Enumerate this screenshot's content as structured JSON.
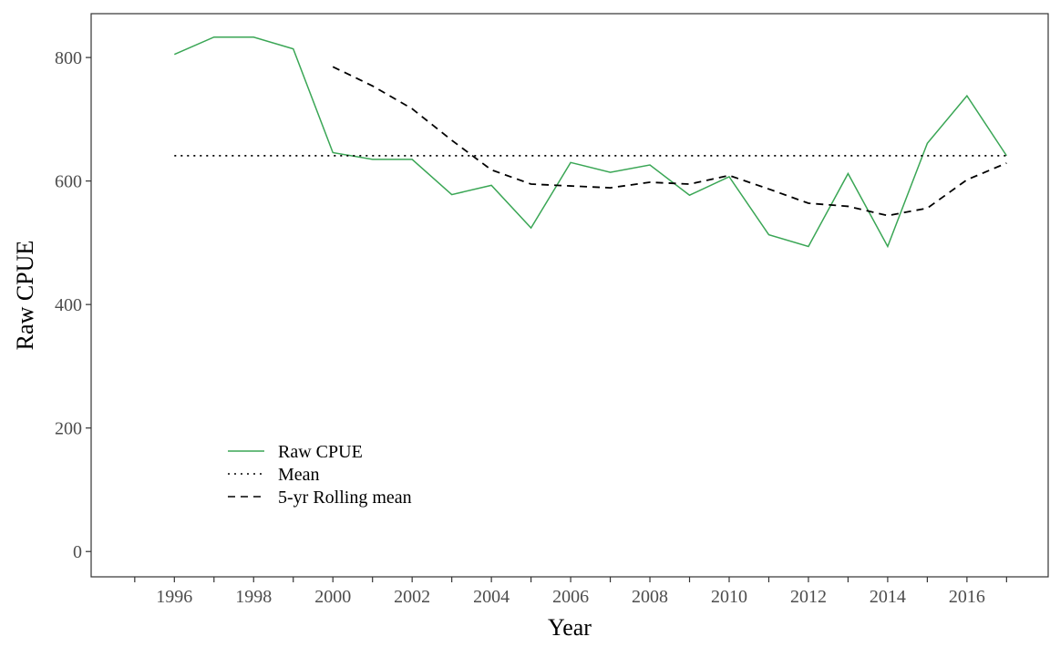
{
  "chart_data": {
    "type": "line",
    "x_label": "Year",
    "y_label": "Raw CPUE",
    "x": [
      1996,
      1997,
      1998,
      1999,
      2000,
      2001,
      2002,
      2003,
      2004,
      2005,
      2006,
      2007,
      2008,
      2009,
      2010,
      2011,
      2012,
      2013,
      2014,
      2015,
      2016,
      2017
    ],
    "series": [
      {
        "name": "Raw CPUE",
        "color": "#3aa655",
        "dash": "solid",
        "values": [
          805,
          833,
          833,
          814,
          646,
          635,
          635,
          578,
          593,
          524,
          630,
          614,
          626,
          577,
          607,
          513,
          494,
          612,
          494,
          661,
          738,
          641
        ]
      },
      {
        "name": "Mean",
        "color": "#000000",
        "dash": "dotted",
        "values": [
          641,
          641,
          641,
          641,
          641,
          641,
          641,
          641,
          641,
          641,
          641,
          641,
          641,
          641,
          641,
          641,
          641,
          641,
          641,
          641,
          641,
          641
        ]
      },
      {
        "name": "5-yr Rolling mean",
        "color": "#000000",
        "dash": "dashed",
        "values": [
          null,
          null,
          null,
          null,
          785,
          754,
          717,
          666,
          618,
          595,
          592,
          589,
          598,
          595,
          609,
          587,
          564,
          559,
          544,
          556,
          602,
          629
        ]
      }
    ],
    "xlim": [
      1993.9,
      2018.05
    ],
    "ylim": [
      -41,
      871
    ],
    "xticks": [
      1996,
      1998,
      2000,
      2002,
      2004,
      2006,
      2008,
      2010,
      2012,
      2014,
      2016
    ],
    "xminor_ticks": [
      1995,
      1997,
      1999,
      2001,
      2003,
      2005,
      2007,
      2009,
      2011,
      2013,
      2015,
      2017
    ],
    "yticks": [
      0,
      200,
      400,
      600,
      800
    ],
    "legend": "bottom-left"
  }
}
